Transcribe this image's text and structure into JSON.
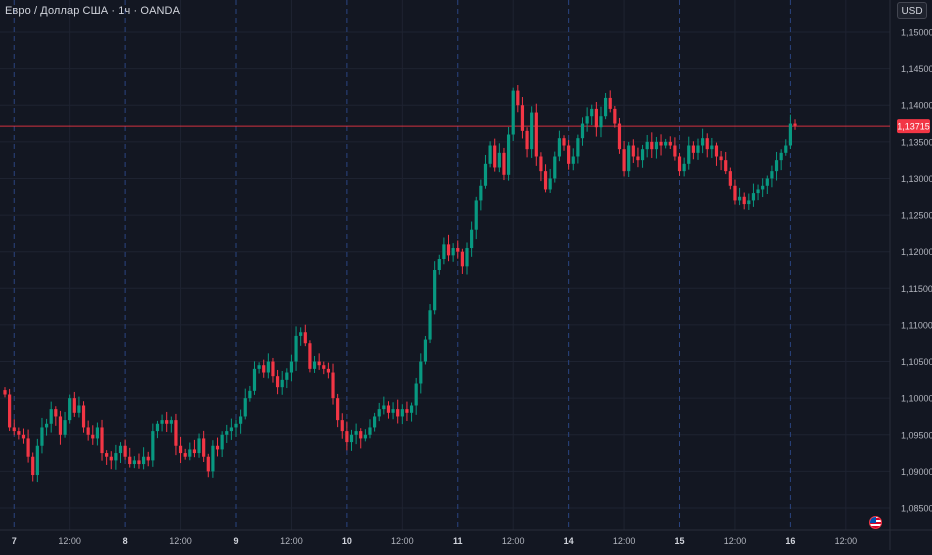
{
  "header": {
    "symbol_title": "Евро / Доллар США · 1ч · OANDA",
    "currency_label": "USD"
  },
  "colors": {
    "background": "#131722",
    "grid": "#1e2331",
    "session_line": "#2a4480",
    "axis_text": "#b2b5be",
    "up": "#089981",
    "down": "#f23645",
    "price_line": "#f23645"
  },
  "icons": {
    "flag": "us-flag-icon"
  },
  "chart_data": {
    "type": "candlestick",
    "title": "",
    "xlabel": "",
    "ylabel": "",
    "x_ticks": [
      {
        "label": "7",
        "bold": true,
        "t": 2
      },
      {
        "label": "12:00",
        "bold": false,
        "t": 14
      },
      {
        "label": "8",
        "bold": true,
        "t": 26
      },
      {
        "label": "12:00",
        "bold": false,
        "t": 38
      },
      {
        "label": "9",
        "bold": true,
        "t": 50
      },
      {
        "label": "12:00",
        "bold": false,
        "t": 62
      },
      {
        "label": "10",
        "bold": true,
        "t": 74
      },
      {
        "label": "12:00",
        "bold": false,
        "t": 86
      },
      {
        "label": "11",
        "bold": true,
        "t": 98
      },
      {
        "label": "12:00",
        "bold": false,
        "t": 110
      },
      {
        "label": "14",
        "bold": true,
        "t": 122
      },
      {
        "label": "12:00",
        "bold": false,
        "t": 134
      },
      {
        "label": "15",
        "bold": true,
        "t": 146
      },
      {
        "label": "12:00",
        "bold": false,
        "t": 158
      },
      {
        "label": "16",
        "bold": true,
        "t": 170
      },
      {
        "label": "12:00",
        "bold": false,
        "t": 182
      }
    ],
    "y_ticks": [
      "1,15000",
      "1,14500",
      "1,14000",
      "1,13500",
      "1,13000",
      "1,12500",
      "1,12000",
      "1,11500",
      "1,11000",
      "1,10500",
      "1,10000",
      "1,09500",
      "1,09000",
      "1,08500"
    ],
    "ylim": [
      1.0835,
      1.1535
    ],
    "current_price": 1.13715,
    "current_price_label": "1,13715",
    "closes": [
      1.1005,
      1.096,
      1.0955,
      1.095,
      1.0945,
      1.092,
      1.0895,
      1.0935,
      1.096,
      1.0965,
      1.0985,
      1.0975,
      1.095,
      1.097,
      1.1,
      1.098,
      1.099,
      1.096,
      1.095,
      1.0945,
      1.096,
      1.0925,
      1.092,
      1.0915,
      1.0925,
      1.0935,
      1.092,
      1.091,
      1.0915,
      1.091,
      1.092,
      1.0915,
      1.0955,
      1.0965,
      1.097,
      1.0965,
      1.097,
      1.0935,
      1.0925,
      1.092,
      1.093,
      1.0925,
      1.0945,
      1.092,
      1.09,
      1.0935,
      1.093,
      1.095,
      1.0955,
      1.096,
      1.0965,
      1.0975,
      1.1,
      1.101,
      1.104,
      1.1045,
      1.1035,
      1.105,
      1.103,
      1.1015,
      1.1025,
      1.1035,
      1.105,
      1.1085,
      1.109,
      1.1075,
      1.104,
      1.105,
      1.1045,
      1.104,
      1.1035,
      1.1,
      1.097,
      1.0955,
      1.094,
      1.095,
      1.0955,
      1.0945,
      1.095,
      1.096,
      1.0975,
      1.0985,
      1.099,
      1.098,
      1.0985,
      1.0975,
      1.0985,
      1.098,
      1.099,
      1.102,
      1.105,
      1.108,
      1.112,
      1.1175,
      1.119,
      1.121,
      1.1195,
      1.1205,
      1.12,
      1.118,
      1.1205,
      1.123,
      1.127,
      1.129,
      1.132,
      1.1345,
      1.1315,
      1.1335,
      1.1305,
      1.136,
      1.142,
      1.14,
      1.1365,
      1.134,
      1.139,
      1.133,
      1.131,
      1.1285,
      1.13,
      1.133,
      1.1355,
      1.1345,
      1.132,
      1.133,
      1.1355,
      1.1375,
      1.1385,
      1.1395,
      1.137,
      1.1385,
      1.141,
      1.1395,
      1.1375,
      1.134,
      1.131,
      1.1345,
      1.133,
      1.1325,
      1.134,
      1.135,
      1.134,
      1.135,
      1.1345,
      1.135,
      1.1345,
      1.133,
      1.131,
      1.132,
      1.1345,
      1.1335,
      1.1345,
      1.1355,
      1.134,
      1.1345,
      1.133,
      1.1325,
      1.131,
      1.129,
      1.127,
      1.1275,
      1.1265,
      1.127,
      1.128,
      1.1285,
      1.129,
      1.13,
      1.131,
      1.1325,
      1.1335,
      1.1345,
      1.1375,
      1.1372
    ]
  }
}
